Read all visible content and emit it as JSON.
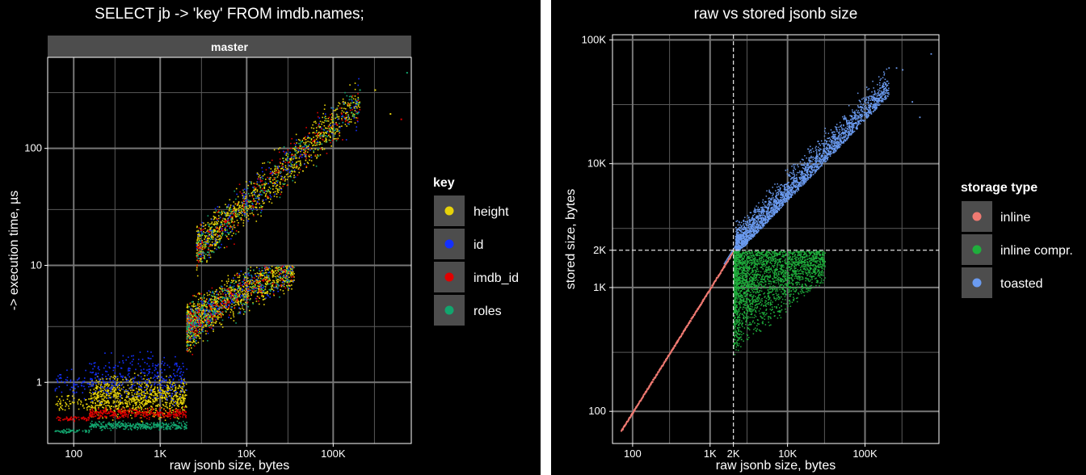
{
  "colors": {
    "height": "#e6d20a",
    "id": "#1430ff",
    "imdb_id": "#e00000",
    "roles": "#12a56e",
    "inline": "#f07a72",
    "inline_compr": "#1fae3c",
    "toasted": "#6b9bf0",
    "grid": "#5a5a5a",
    "strip_bg": "#4d4d4d"
  },
  "chart_data": [
    {
      "type": "scatter",
      "title": "SELECT jb -> 'key' FROM imdb.names;",
      "strip_label": "master",
      "xlabel": "raw jsonb size, bytes",
      "ylabel": "-> execution time, µs",
      "x_scale": "log",
      "y_scale": "log",
      "xlim": [
        50,
        800000
      ],
      "ylim": [
        0.3,
        600
      ],
      "x_ticks": [
        {
          "value": 100,
          "label": "100"
        },
        {
          "value": 1000,
          "label": "1K"
        },
        {
          "value": 10000,
          "label": "10K"
        },
        {
          "value": 100000,
          "label": "100K"
        }
      ],
      "y_ticks": [
        {
          "value": 1,
          "label": "1"
        },
        {
          "value": 10,
          "label": "10"
        },
        {
          "value": 100,
          "label": "100"
        }
      ],
      "grid": true,
      "legend": {
        "title": "key",
        "placement": "right",
        "items": [
          {
            "label": "height",
            "color_key": "height"
          },
          {
            "label": "id",
            "color_key": "id"
          },
          {
            "label": "imdb_id",
            "color_key": "imdb_id"
          },
          {
            "label": "roles",
            "color_key": "roles"
          }
        ]
      },
      "series": [
        {
          "name": "height",
          "color_key": "height",
          "points": [
            [
              60,
              0.38
            ],
            [
              150,
              0.7
            ],
            [
              500,
              0.9
            ],
            [
              1000,
              0.75
            ],
            [
              2000,
              0.55
            ],
            [
              2000,
              1.3
            ],
            [
              2500,
              3
            ],
            [
              3000,
              6
            ],
            [
              5000,
              8
            ],
            [
              3000,
              14
            ],
            [
              10000,
              30
            ],
            [
              20000,
              70
            ],
            [
              50000,
              130
            ],
            [
              200000,
              300
            ]
          ]
        },
        {
          "name": "id",
          "color_key": "id",
          "points": [
            [
              80,
              1.0
            ],
            [
              150,
              1.5
            ],
            [
              500,
              1.3
            ],
            [
              1500,
              1.1
            ],
            [
              5000,
              5
            ],
            [
              20000,
              5
            ],
            [
              30000,
              60
            ],
            [
              100000,
              100
            ]
          ]
        },
        {
          "name": "imdb_id",
          "color_key": "imdb_id",
          "points": [
            [
              70,
              0.55
            ],
            [
              150,
              0.56
            ],
            [
              1000,
              0.55
            ],
            [
              2000,
              0.56
            ],
            [
              10000,
              4
            ],
            [
              30000,
              8
            ],
            [
              50000,
              50
            ],
            [
              300000,
              130
            ]
          ]
        },
        {
          "name": "roles",
          "color_key": "roles",
          "points": [
            [
              60,
              0.42
            ],
            [
              150,
              0.43
            ],
            [
              1000,
              0.42
            ],
            [
              2000,
              0.43
            ],
            [
              5000,
              3
            ],
            [
              20000,
              9
            ],
            [
              80000,
              110
            ],
            [
              400000,
              220
            ]
          ]
        }
      ]
    },
    {
      "type": "scatter",
      "title": "raw vs stored jsonb size",
      "xlabel": "raw jsonb size, bytes",
      "ylabel": "stored size, bytes",
      "x_scale": "log",
      "y_scale": "log",
      "xlim": [
        55,
        900000
      ],
      "ylim": [
        55,
        110000
      ],
      "x_ticks": [
        {
          "value": 100,
          "label": "100"
        },
        {
          "value": 1000,
          "label": "1K"
        },
        {
          "value": 2000,
          "label": "2K"
        },
        {
          "value": 10000,
          "label": "10K"
        },
        {
          "value": 100000,
          "label": "100K"
        }
      ],
      "y_ticks": [
        {
          "value": 100,
          "label": "100"
        },
        {
          "value": 1000,
          "label": "1K"
        },
        {
          "value": 2000,
          "label": "2K"
        },
        {
          "value": 10000,
          "label": "10K"
        },
        {
          "value": 100000,
          "label": "100K"
        }
      ],
      "threshold": {
        "x": 2000,
        "y": 2000
      },
      "grid": true,
      "legend": {
        "title": "storage type",
        "placement": "right",
        "items": [
          {
            "label": "inline",
            "color_key": "inline"
          },
          {
            "label": "inline compr.",
            "color_key": "inline_compr"
          },
          {
            "label": "toasted",
            "color_key": "toasted"
          }
        ]
      },
      "series": [
        {
          "name": "inline",
          "color_key": "inline",
          "points": [
            [
              70,
              70
            ],
            [
              100,
              100
            ],
            [
              300,
              300
            ],
            [
              1000,
              1000
            ],
            [
              2000,
              2000
            ]
          ]
        },
        {
          "name": "inline compr.",
          "color_key": "inline_compr",
          "points": [
            [
              2000,
              300
            ],
            [
              2000,
              1900
            ],
            [
              5000,
              600
            ],
            [
              10000,
              1500
            ],
            [
              20000,
              1800
            ]
          ]
        },
        {
          "name": "toasted",
          "color_key": "toasted",
          "points": [
            [
              2000,
              2000
            ],
            [
              5000,
              4000
            ],
            [
              10000,
              8000
            ],
            [
              50000,
              20000
            ],
            [
              100000,
              30000
            ],
            [
              300000,
              60000
            ],
            [
              700000,
              80000
            ]
          ]
        }
      ]
    }
  ]
}
